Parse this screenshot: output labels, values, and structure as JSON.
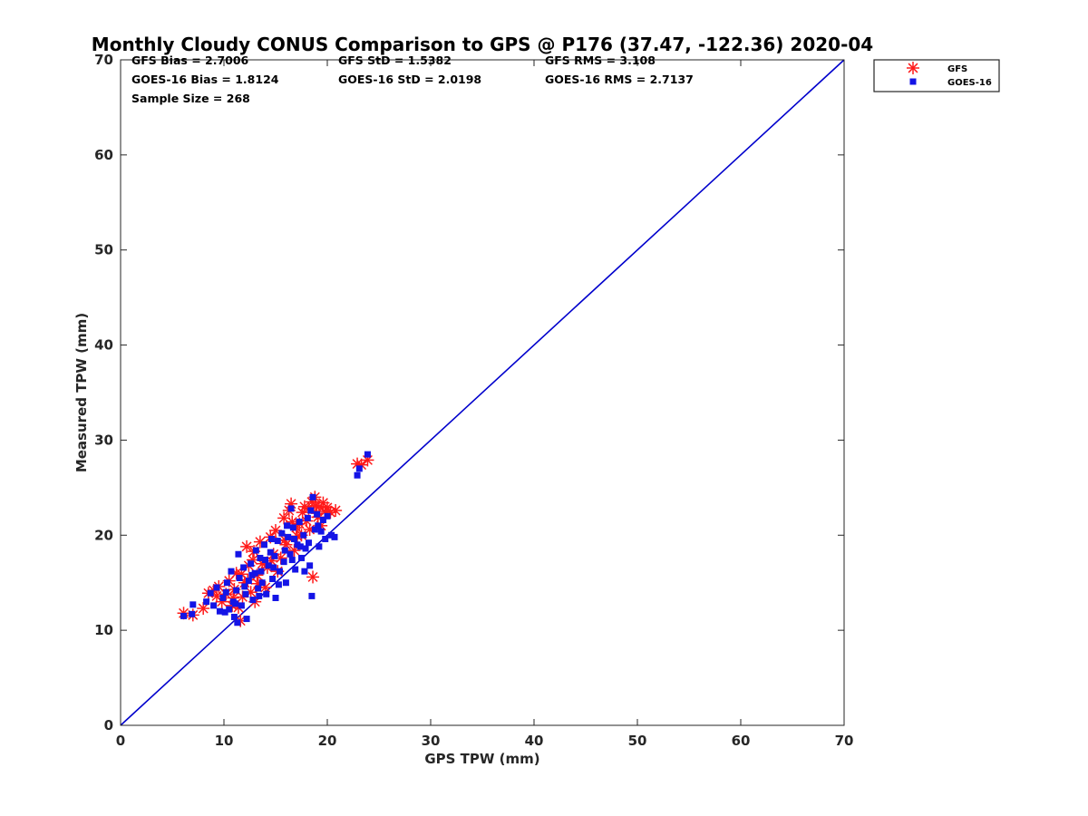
{
  "chart_data": {
    "type": "scatter",
    "title": "Monthly Cloudy CONUS Comparison to GPS @ P176 (37.47, -122.36) 2020-04",
    "xlabel": "GPS TPW (mm)",
    "ylabel": "Measured TPW (mm)",
    "xlim": [
      0,
      70
    ],
    "ylim": [
      0,
      70
    ],
    "xticks": [
      0,
      10,
      20,
      30,
      40,
      50,
      60,
      70
    ],
    "yticks": [
      0,
      10,
      20,
      30,
      40,
      50,
      60,
      70
    ],
    "grid": false,
    "legend_position": "top-right",
    "stats": {
      "gfs_bias": "GFS Bias = 2.7006",
      "goes_bias": "GOES-16 Bias = 1.8124",
      "sample_size": "Sample Size = 268",
      "gfs_std": "GFS StD = 1.5382",
      "goes_std": "GOES-16 StD = 2.0198",
      "gfs_rms": "GFS RMS = 3.108",
      "goes_rms": "GOES-16 RMS = 2.7137"
    },
    "reference_line": {
      "x": [
        0,
        70
      ],
      "y": [
        0,
        70
      ],
      "color": "#0000cc"
    },
    "series": [
      {
        "name": "GFS",
        "marker": "asterisk",
        "color": "#ff1a1a",
        "points": [
          [
            6.1,
            11.8
          ],
          [
            7.0,
            11.6
          ],
          [
            8.0,
            12.3
          ],
          [
            8.5,
            13.9
          ],
          [
            9.0,
            14.2
          ],
          [
            9.5,
            14.6
          ],
          [
            9.8,
            13.0
          ],
          [
            10.2,
            13.8
          ],
          [
            10.5,
            15.2
          ],
          [
            10.8,
            12.6
          ],
          [
            11.0,
            14.3
          ],
          [
            11.2,
            16.0
          ],
          [
            11.4,
            12.4
          ],
          [
            11.6,
            11.0
          ],
          [
            11.8,
            13.5
          ],
          [
            12.0,
            15.0
          ],
          [
            12.2,
            18.8
          ],
          [
            12.4,
            16.8
          ],
          [
            12.6,
            14.0
          ],
          [
            12.8,
            17.4
          ],
          [
            13.0,
            13.0
          ],
          [
            13.2,
            15.8
          ],
          [
            13.5,
            19.3
          ],
          [
            13.7,
            17.0
          ],
          [
            14.0,
            14.5
          ],
          [
            14.2,
            16.6
          ],
          [
            14.5,
            19.8
          ],
          [
            14.8,
            18.0
          ],
          [
            15.0,
            20.5
          ],
          [
            15.2,
            16.2
          ],
          [
            15.5,
            17.6
          ],
          [
            15.8,
            21.8
          ],
          [
            16.0,
            19.0
          ],
          [
            16.3,
            22.6
          ],
          [
            16.5,
            23.3
          ],
          [
            16.8,
            18.4
          ],
          [
            17.0,
            20.8
          ],
          [
            17.3,
            21.2
          ],
          [
            17.5,
            20.0
          ],
          [
            17.8,
            23.0
          ],
          [
            18.0,
            21.5
          ],
          [
            18.2,
            22.8
          ],
          [
            18.5,
            23.5
          ],
          [
            18.6,
            15.6
          ],
          [
            18.8,
            24.0
          ],
          [
            19.0,
            22.3
          ],
          [
            19.2,
            23.0
          ],
          [
            19.4,
            21.0
          ],
          [
            19.6,
            23.4
          ],
          [
            19.8,
            22.5
          ],
          [
            20.0,
            22.9
          ],
          [
            20.3,
            22.4
          ],
          [
            20.8,
            22.6
          ],
          [
            22.9,
            27.5
          ],
          [
            23.3,
            27.4
          ],
          [
            23.9,
            27.9
          ],
          [
            12.3,
            15.3
          ],
          [
            13.3,
            14.9
          ],
          [
            14.6,
            17.3
          ],
          [
            16.6,
            21.4
          ],
          [
            17.6,
            22.4
          ],
          [
            18.3,
            20.6
          ],
          [
            19.1,
            21.9
          ],
          [
            11.7,
            15.9
          ],
          [
            10.9,
            13.4
          ],
          [
            12.9,
            18.3
          ],
          [
            15.9,
            19.5
          ],
          [
            17.1,
            19.9
          ],
          [
            18.9,
            23.1
          ],
          [
            9.3,
            13.6
          ]
        ]
      },
      {
        "name": "GOES-16",
        "marker": "square",
        "color": "#1414e6",
        "points": [
          [
            6.1,
            11.5
          ],
          [
            6.9,
            11.7
          ],
          [
            7.0,
            12.7
          ],
          [
            8.3,
            13.0
          ],
          [
            8.7,
            13.9
          ],
          [
            9.0,
            12.6
          ],
          [
            9.3,
            14.5
          ],
          [
            9.6,
            12.0
          ],
          [
            9.9,
            13.4
          ],
          [
            10.1,
            11.9
          ],
          [
            10.3,
            15.0
          ],
          [
            10.5,
            12.2
          ],
          [
            10.7,
            16.2
          ],
          [
            10.9,
            13.0
          ],
          [
            11.0,
            11.4
          ],
          [
            11.2,
            14.2
          ],
          [
            11.3,
            10.8
          ],
          [
            11.4,
            18.0
          ],
          [
            11.5,
            15.5
          ],
          [
            11.7,
            12.6
          ],
          [
            11.9,
            16.6
          ],
          [
            12.1,
            13.8
          ],
          [
            12.2,
            11.2
          ],
          [
            12.4,
            15.2
          ],
          [
            12.6,
            17.0
          ],
          [
            12.8,
            13.2
          ],
          [
            13.0,
            16.0
          ],
          [
            13.1,
            18.4
          ],
          [
            13.3,
            14.4
          ],
          [
            13.5,
            17.6
          ],
          [
            13.7,
            15.0
          ],
          [
            13.9,
            19.0
          ],
          [
            14.1,
            13.8
          ],
          [
            14.3,
            16.8
          ],
          [
            14.5,
            18.2
          ],
          [
            14.7,
            15.4
          ],
          [
            14.9,
            17.8
          ],
          [
            15.0,
            13.4
          ],
          [
            15.2,
            19.4
          ],
          [
            15.4,
            16.2
          ],
          [
            15.6,
            20.2
          ],
          [
            15.8,
            17.2
          ],
          [
            16.0,
            15.0
          ],
          [
            16.2,
            19.8
          ],
          [
            16.4,
            18.0
          ],
          [
            16.5,
            22.8
          ],
          [
            16.7,
            20.8
          ],
          [
            16.9,
            16.4
          ],
          [
            17.1,
            19.0
          ],
          [
            17.3,
            21.4
          ],
          [
            17.5,
            17.6
          ],
          [
            17.7,
            20.0
          ],
          [
            17.9,
            18.6
          ],
          [
            18.1,
            21.8
          ],
          [
            18.3,
            16.8
          ],
          [
            18.5,
            13.6
          ],
          [
            18.6,
            24.0
          ],
          [
            18.8,
            20.6
          ],
          [
            19.0,
            22.2
          ],
          [
            19.2,
            18.8
          ],
          [
            19.4,
            20.4
          ],
          [
            19.6,
            21.6
          ],
          [
            19.8,
            19.6
          ],
          [
            20.0,
            22.0
          ],
          [
            20.4,
            20.0
          ],
          [
            20.7,
            19.8
          ],
          [
            22.9,
            26.3
          ],
          [
            23.1,
            27.0
          ],
          [
            23.9,
            28.5
          ],
          [
            12.0,
            14.6
          ],
          [
            13.6,
            16.2
          ],
          [
            14.8,
            16.6
          ],
          [
            15.9,
            18.4
          ],
          [
            16.6,
            17.4
          ],
          [
            17.4,
            18.8
          ],
          [
            18.2,
            19.2
          ],
          [
            11.1,
            12.8
          ],
          [
            12.7,
            15.8
          ],
          [
            14.0,
            17.4
          ],
          [
            15.3,
            14.8
          ],
          [
            16.8,
            19.6
          ],
          [
            17.8,
            16.2
          ],
          [
            19.1,
            21.0
          ],
          [
            10.2,
            14.0
          ],
          [
            13.4,
            13.6
          ],
          [
            14.6,
            19.6
          ],
          [
            16.1,
            21.0
          ],
          [
            18.4,
            22.6
          ]
        ]
      }
    ]
  }
}
